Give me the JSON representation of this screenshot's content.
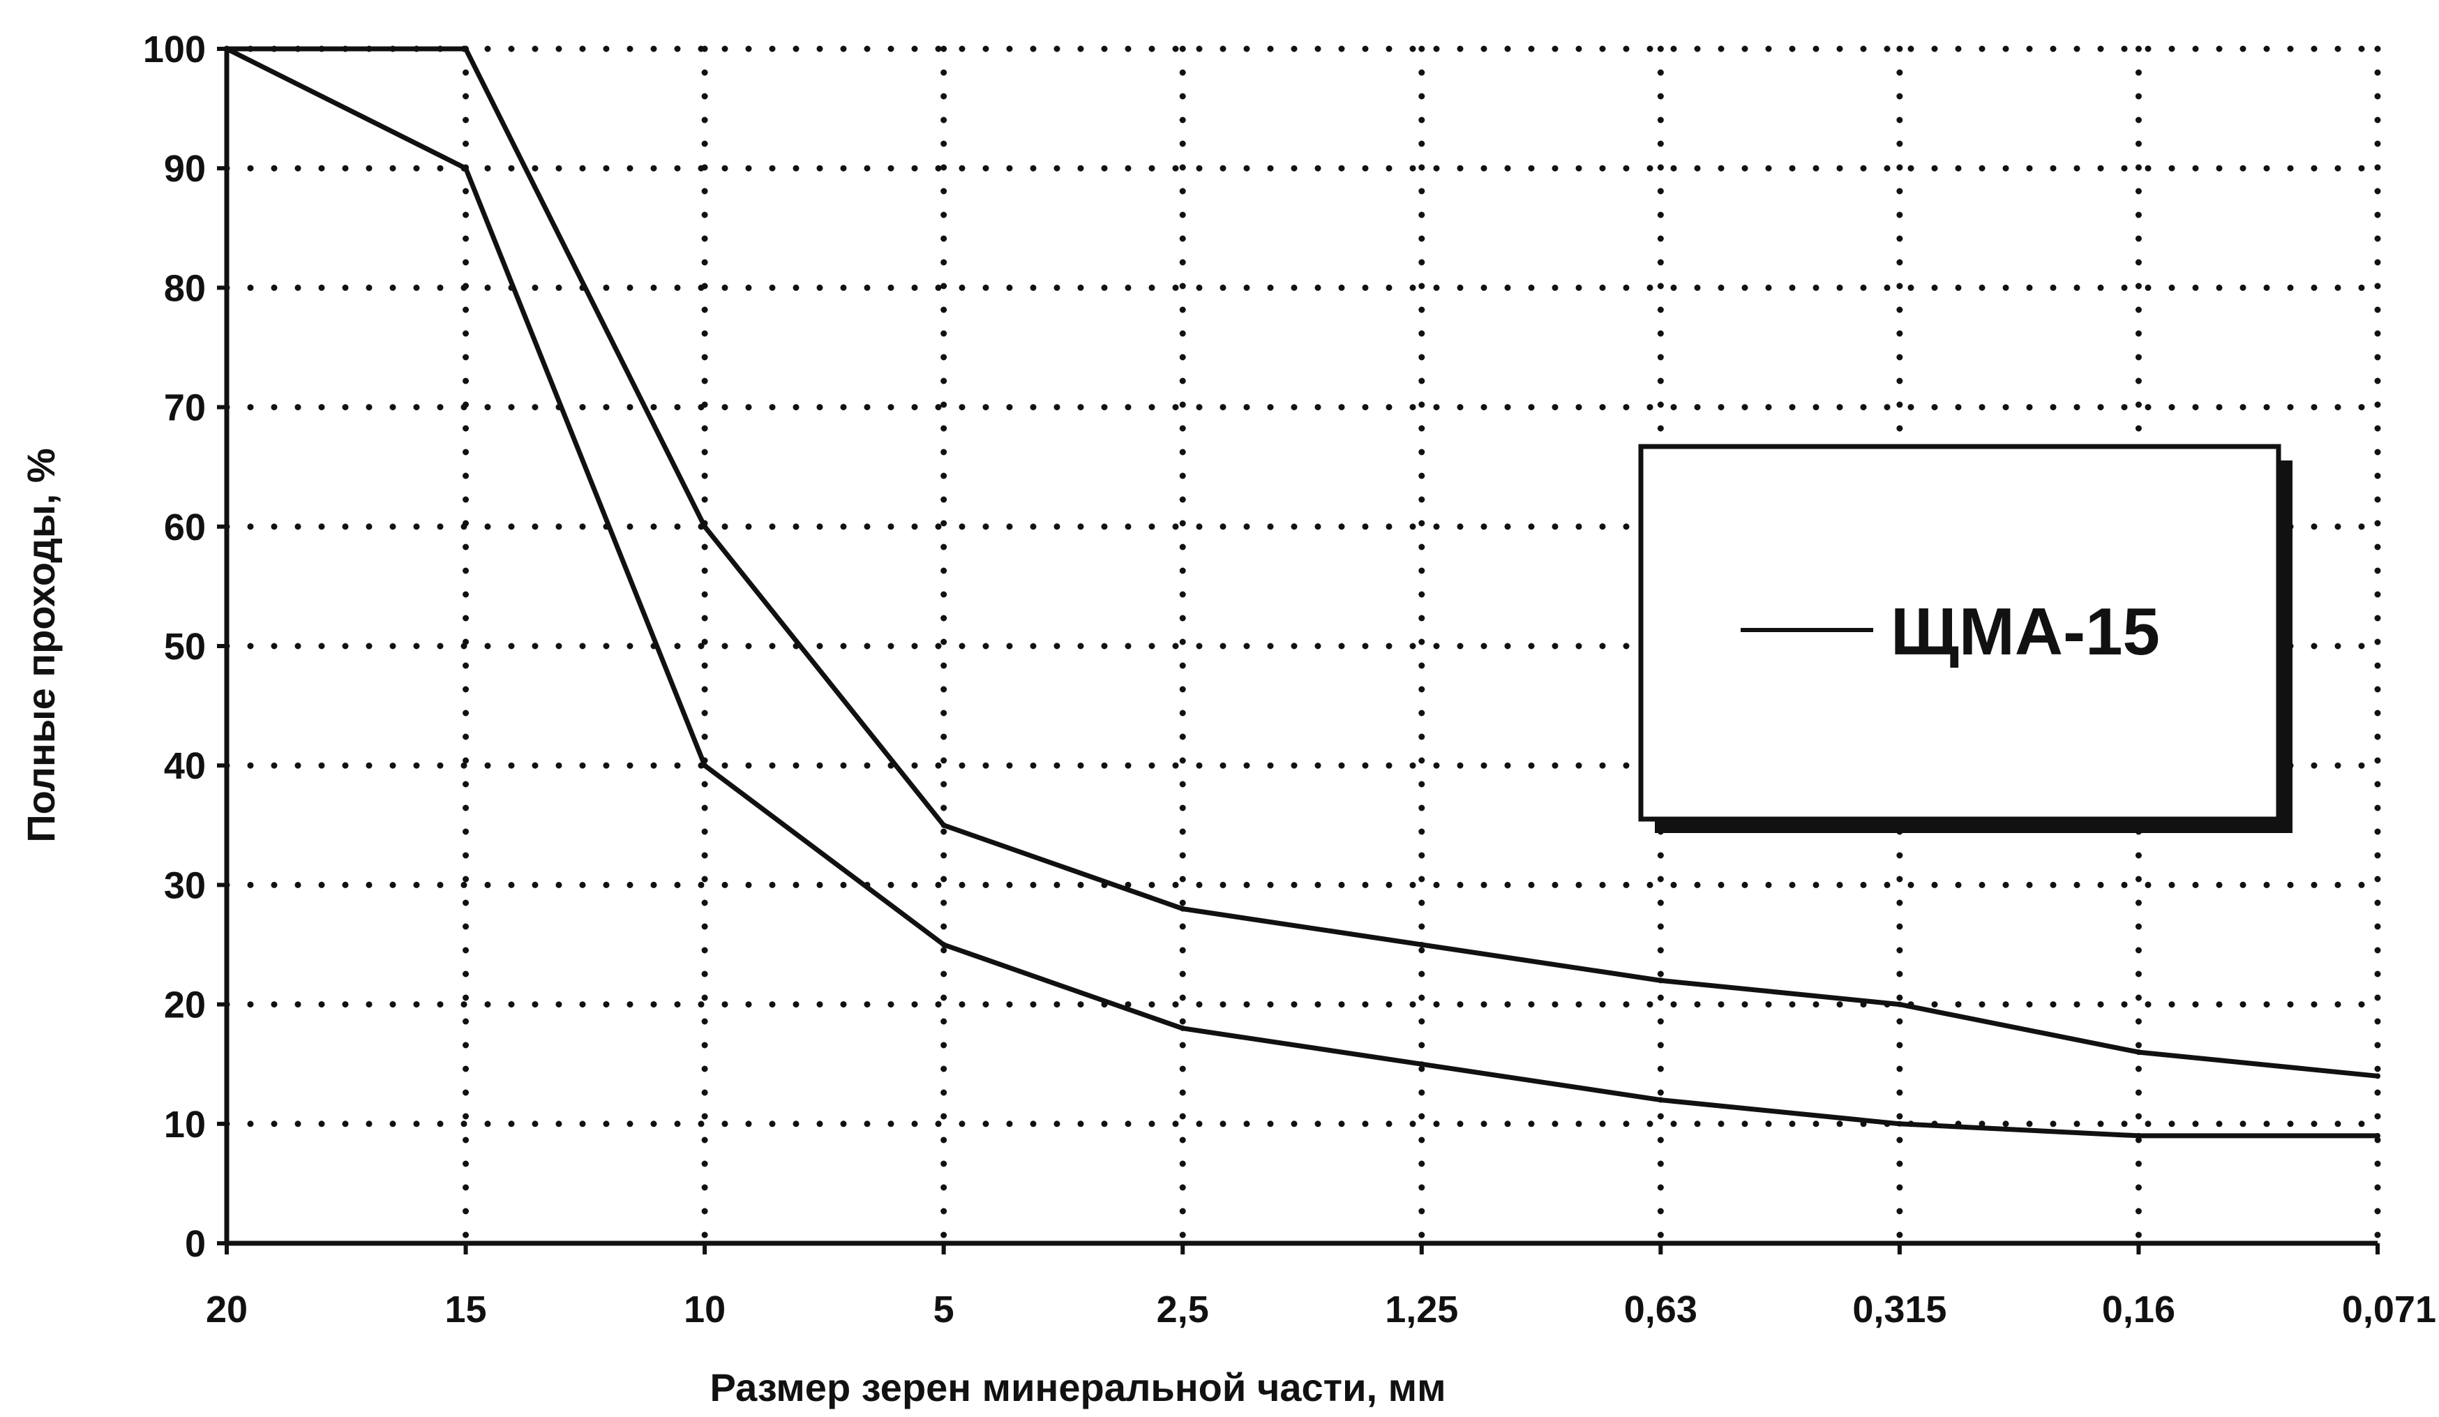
{
  "chart_data": {
    "type": "line",
    "xlabel": "Размер зерен минеральной части, мм",
    "ylabel": "Полные проходы, %",
    "categories": [
      "20",
      "15",
      "10",
      "5",
      "2,5",
      "1,25",
      "0,63",
      "0,315",
      "0,16",
      "0,071"
    ],
    "y_ticks": [
      "0",
      "10",
      "20",
      "30",
      "40",
      "50",
      "60",
      "70",
      "80",
      "90",
      "100"
    ],
    "ylim": [
      0,
      100
    ],
    "grid": "dotted",
    "legend": {
      "label": "ЩМА-15",
      "position": "right"
    },
    "series": [
      {
        "values": [
          100,
          100,
          60,
          35,
          28,
          25,
          22,
          20,
          16,
          14
        ]
      },
      {
        "values": [
          100,
          90,
          40,
          25,
          18,
          15,
          12,
          10,
          9,
          9
        ]
      }
    ],
    "colors": {
      "line": "#111111",
      "grid": "#111111",
      "background": "#ffffff"
    }
  }
}
